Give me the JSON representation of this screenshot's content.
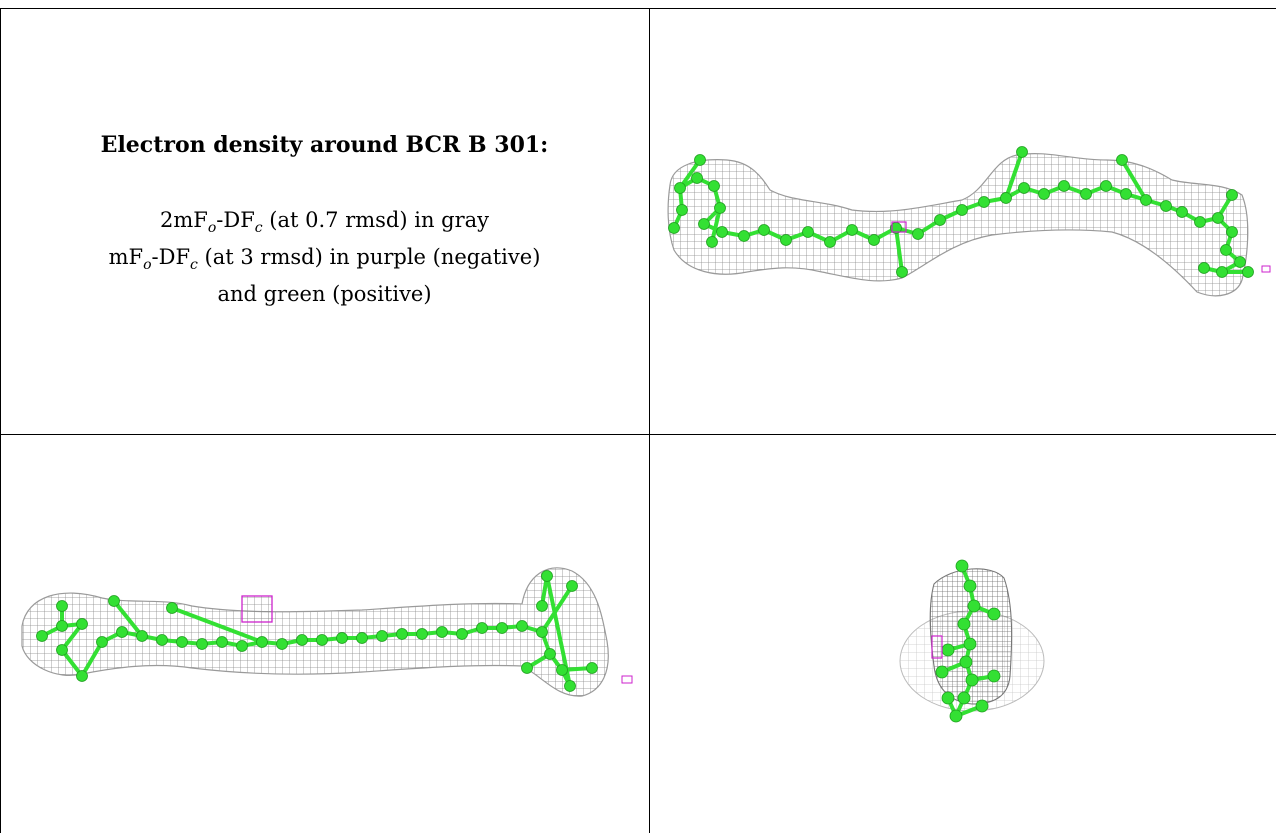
{
  "caption": {
    "title": "Electron density around BCR B 301:",
    "line1": {
      "pre": "2mF",
      "sub1": "o",
      "mid": "-DF",
      "sub2": "c",
      "post": " (at 0.7 rmsd) in gray"
    },
    "line2": {
      "pre": "mF",
      "sub1": "o",
      "mid": "-DF",
      "sub2": "c",
      "post": " (at 3 rmsd) in purple (negative)"
    },
    "line3": "and green (positive)"
  },
  "colors": {
    "mesh_gray": "#8a8a8a",
    "atom_green": "#33e033",
    "negative_purple": "#cc22cc",
    "positive_green": "#33cc33"
  },
  "panels": [
    {
      "view": "side-view-1",
      "contents": "carotenoid-model-with-density-mesh"
    },
    {
      "view": "side-view-2",
      "contents": "carotenoid-model-with-density-mesh"
    },
    {
      "view": "end-on-view",
      "contents": "carotenoid-model-with-density-mesh"
    }
  ]
}
